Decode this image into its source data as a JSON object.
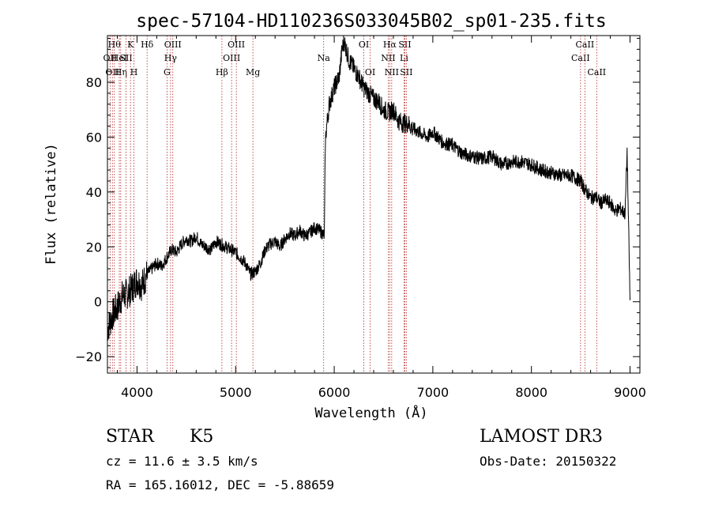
{
  "chart_data": {
    "type": "line",
    "title": "spec-57104-HD110236S033045B02_sp01-235.fits",
    "xlabel": "Wavelength (Å)",
    "ylabel": "Flux (relative)",
    "xlim": [
      3700,
      9100
    ],
    "ylim": [
      -26,
      97
    ],
    "xticks": [
      4000,
      5000,
      6000,
      7000,
      8000,
      9000
    ],
    "yticks": [
      -20,
      0,
      20,
      40,
      60,
      80
    ],
    "grid": false,
    "series": [
      {
        "name": "flux",
        "x": [
          3700,
          3750,
          3800,
          3850,
          3900,
          3950,
          4000,
          4050,
          4100,
          4150,
          4200,
          4250,
          4300,
          4350,
          4400,
          4450,
          4500,
          4550,
          4600,
          4650,
          4700,
          4750,
          4800,
          4850,
          4900,
          4950,
          5000,
          5050,
          5100,
          5150,
          5200,
          5250,
          5300,
          5350,
          5400,
          5450,
          5500,
          5550,
          5600,
          5650,
          5700,
          5750,
          5800,
          5850,
          5880,
          5900,
          5910,
          5920,
          5950,
          6000,
          6050,
          6080,
          6100,
          6150,
          6200,
          6250,
          6300,
          6350,
          6400,
          6450,
          6500,
          6550,
          6600,
          6650,
          6700,
          6750,
          6800,
          6850,
          6900,
          6950,
          7000,
          7100,
          7200,
          7300,
          7400,
          7500,
          7600,
          7700,
          7800,
          7900,
          8000,
          8100,
          8200,
          8300,
          8400,
          8450,
          8500,
          8540,
          8600,
          8660,
          8700,
          8750,
          8800,
          8850,
          8900,
          8950,
          8970,
          9000
        ],
        "y": [
          -10,
          -5,
          -2,
          2,
          3,
          5,
          8,
          6,
          10,
          12,
          14,
          13,
          16,
          19,
          18,
          21,
          23,
          22,
          24,
          21,
          20,
          19,
          22,
          21,
          20,
          19,
          18,
          16,
          14,
          10,
          11,
          14,
          19,
          21,
          22,
          20,
          23,
          25,
          24,
          26,
          24,
          25,
          27,
          26,
          25,
          24,
          58,
          63,
          72,
          78,
          82,
          92,
          95,
          88,
          85,
          82,
          78,
          76,
          74,
          73,
          70,
          69,
          70,
          66,
          65,
          65,
          63,
          62,
          61,
          60,
          62,
          58,
          57,
          54,
          53,
          52,
          53,
          50,
          51,
          51,
          50,
          48,
          47,
          46,
          46,
          45,
          44,
          41,
          38,
          38,
          36,
          37,
          36,
          33,
          34,
          32,
          55,
          0
        ],
        "color": "#000000"
      }
    ],
    "lines": [
      {
        "lambda": 3727,
        "label": "OII",
        "row": 1
      },
      {
        "lambda": 3750,
        "label": "OII",
        "row": 2
      },
      {
        "lambda": 3770,
        "label": "Hθ",
        "row": 0
      },
      {
        "lambda": 3820,
        "label": "HeI",
        "row": 1
      },
      {
        "lambda": 3835,
        "label": "Hη",
        "row": 2
      },
      {
        "lambda": 3889,
        "label": "SII",
        "row": 1
      },
      {
        "lambda": 3934,
        "label": "K",
        "row": 0
      },
      {
        "lambda": 3969,
        "label": "H",
        "row": 2
      },
      {
        "lambda": 4102,
        "label": "Hδ",
        "row": 0
      },
      {
        "lambda": 4304,
        "label": "G",
        "row": 2
      },
      {
        "lambda": 4340,
        "label": "Hγ",
        "row": 1
      },
      {
        "lambda": 4363,
        "label": "OIII",
        "row": 0
      },
      {
        "lambda": 4861,
        "label": "Hβ",
        "row": 2
      },
      {
        "lambda": 4959,
        "label": "OIII",
        "row": 1
      },
      {
        "lambda": 5007,
        "label": "OIII",
        "row": 0
      },
      {
        "lambda": 5175,
        "label": "Mg",
        "row": 2
      },
      {
        "lambda": 5893,
        "label": "Na",
        "row": 1
      },
      {
        "lambda": 6300,
        "label": "OI",
        "row": 0
      },
      {
        "lambda": 6364,
        "label": "OI",
        "row": 2
      },
      {
        "lambda": 6548,
        "label": "NII",
        "row": 1
      },
      {
        "lambda": 6563,
        "label": "Hα",
        "row": 0
      },
      {
        "lambda": 6583,
        "label": "NII",
        "row": 2
      },
      {
        "lambda": 6708,
        "label": "Li",
        "row": 1
      },
      {
        "lambda": 6716,
        "label": "SII",
        "row": 0
      },
      {
        "lambda": 6731,
        "label": "SII",
        "row": 2
      },
      {
        "lambda": 8498,
        "label": "CaII",
        "row": 1
      },
      {
        "lambda": 8542,
        "label": "CaII",
        "row": 0
      },
      {
        "lambda": 8662,
        "label": "CaII",
        "row": 2
      }
    ]
  },
  "info": {
    "object_class": "STAR",
    "subclass": "K5",
    "survey": "LAMOST DR3",
    "redshift": "cz = 11.6 ± 3.5 km/s",
    "obs_date": "Obs-Date: 20150322",
    "coords": "RA = 165.16012, DEC =  -5.88659"
  }
}
